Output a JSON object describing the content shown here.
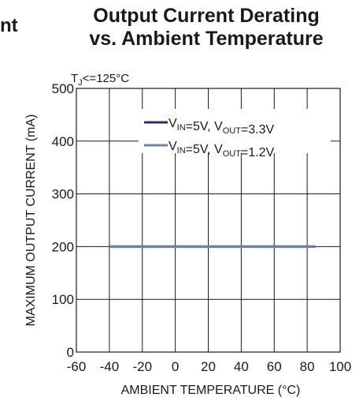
{
  "chart_data": {
    "type": "line",
    "title_lines": [
      "Output Current Derating",
      "vs. Ambient Temperature"
    ],
    "left_edge_text": "nt",
    "condition": {
      "main": "T",
      "sub": "J",
      "rest": "<=125°C"
    },
    "xlabel": "AMBIENT TEMPERATURE (°C)",
    "ylabel": "MAXIMUM OUTPUT CURRENT (mA)",
    "xlim": [
      -60,
      100
    ],
    "ylim": [
      0,
      500
    ],
    "x_ticks": [
      -60,
      -40,
      -20,
      0,
      20,
      40,
      60,
      80,
      100
    ],
    "y_ticks": [
      0,
      100,
      200,
      300,
      400,
      500
    ],
    "grid": true,
    "legend_position": "top-right",
    "series": [
      {
        "name": "VIN=5V, VOUT=3.3V",
        "name_parts": [
          {
            "t": "V"
          },
          {
            "t": "IN",
            "sub": true
          },
          {
            "t": "=5V, V"
          },
          {
            "t": "OUT",
            "sub": true
          },
          {
            "t": "=3.3V"
          }
        ],
        "color": "#2a2e6e",
        "x": [
          -40,
          85
        ],
        "y": [
          200,
          200
        ]
      },
      {
        "name": "VIN=5V, VOUT=1.2V",
        "name_parts": [
          {
            "t": "V"
          },
          {
            "t": "IN",
            "sub": true
          },
          {
            "t": "=5V, V"
          },
          {
            "t": "OUT",
            "sub": true
          },
          {
            "t": "=1.2V"
          }
        ],
        "color": "#6f7fb2",
        "x": [
          -40,
          85
        ],
        "y": [
          200,
          200
        ]
      }
    ]
  }
}
